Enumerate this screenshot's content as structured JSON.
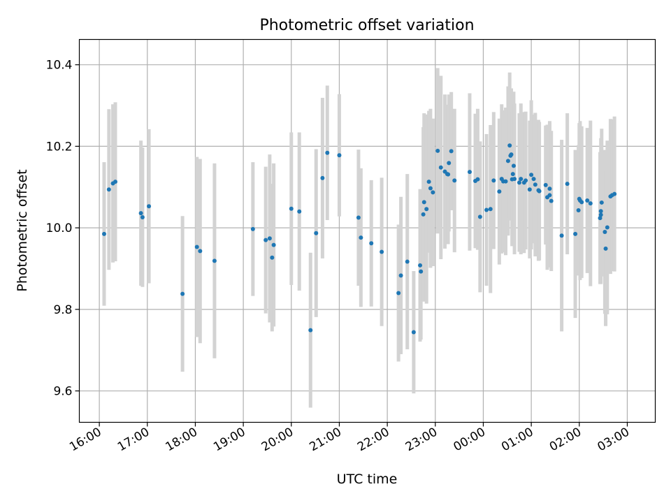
{
  "chart_data": {
    "type": "scatter",
    "title": "Photometric offset variation",
    "xlabel": "UTC time",
    "ylabel": "Photometric offset",
    "grid": true,
    "x_axis_kind": "time",
    "xlim": [
      "15:35",
      "03:35"
    ],
    "ylim": [
      9.523,
      10.462
    ],
    "x_tick_labels": [
      "16:00",
      "17:00",
      "18:00",
      "19:00",
      "20:00",
      "21:00",
      "22:00",
      "23:00",
      "00:00",
      "01:00",
      "02:00",
      "03:00"
    ],
    "y_ticks": [
      9.6,
      9.8,
      10.0,
      10.2,
      10.4
    ],
    "y_tick_labels": [
      "9.6",
      "9.8",
      "10.0",
      "10.2",
      "10.4"
    ],
    "colors": {
      "points": "#1f77b4",
      "error_bars": "#d3d3d3",
      "grid": "#b0b0b0"
    },
    "series": [
      {
        "x": [
          "16:06",
          "16:12",
          "16:17",
          "16:20",
          "16:52",
          "16:54",
          "17:02",
          "17:44",
          "18:02",
          "18:06",
          "18:24",
          "19:12",
          "19:28",
          "19:33",
          "19:36",
          "19:38",
          "20:00",
          "20:10",
          "20:24",
          "20:31",
          "20:39",
          "20:45",
          "21:00",
          "21:24",
          "21:27",
          "21:40",
          "21:53",
          "22:14",
          "22:17",
          "22:25",
          "22:33",
          "22:41",
          "22:42",
          "22:45",
          "22:46",
          "22:49",
          "22:52",
          "22:54",
          "22:57",
          "23:03",
          "23:07",
          "23:12",
          "23:15",
          "23:16",
          "23:17",
          "23:20",
          "23:24",
          "23:43",
          "23:50",
          "23:53",
          "23:56",
          "00:04",
          "00:09",
          "00:13",
          "00:20",
          "00:23",
          "00:25",
          "00:28",
          "00:31",
          "00:33",
          "00:34",
          "00:35",
          "00:36",
          "00:37",
          "00:38",
          "00:39",
          "00:45",
          "00:47",
          "00:51",
          "00:53",
          "00:58",
          "01:00",
          "01:03",
          "01:05",
          "01:09",
          "01:10",
          "01:18",
          "01:20",
          "01:23",
          "01:23",
          "01:25",
          "01:38",
          "01:45",
          "01:55",
          "01:59",
          "02:00",
          "02:01",
          "02:03",
          "02:10",
          "02:14",
          "02:26",
          "02:27",
          "02:27",
          "02:28",
          "02:32",
          "02:33",
          "02:35",
          "02:39",
          "02:41",
          "02:44"
        ],
        "y": [
          9.985,
          10.094,
          10.109,
          10.113,
          10.036,
          10.026,
          10.053,
          9.838,
          9.953,
          9.943,
          9.919,
          9.997,
          9.97,
          9.974,
          9.927,
          9.958,
          10.047,
          10.04,
          9.749,
          9.987,
          10.122,
          10.184,
          10.178,
          10.025,
          9.976,
          9.962,
          9.941,
          9.84,
          9.883,
          9.917,
          9.744,
          9.908,
          9.893,
          10.033,
          10.063,
          10.046,
          10.113,
          10.097,
          10.087,
          10.189,
          10.148,
          10.138,
          10.132,
          10.131,
          10.159,
          10.188,
          10.116,
          10.137,
          10.115,
          10.119,
          10.027,
          10.044,
          10.046,
          10.116,
          10.089,
          10.12,
          10.114,
          10.114,
          10.164,
          10.202,
          10.177,
          10.18,
          10.119,
          10.132,
          10.152,
          10.12,
          10.111,
          10.12,
          10.111,
          10.116,
          10.094,
          10.13,
          10.12,
          10.106,
          10.092,
          10.09,
          10.105,
          10.075,
          10.096,
          10.08,
          10.066,
          9.981,
          10.108,
          9.985,
          10.043,
          10.071,
          10.067,
          10.063,
          10.067,
          10.06,
          10.024,
          10.032,
          10.041,
          10.062,
          9.99,
          9.949,
          10.001,
          10.077,
          10.08,
          10.083
        ],
        "error": [
          0.176,
          0.197,
          0.194,
          0.195,
          0.178,
          0.171,
          0.189,
          0.191,
          0.221,
          0.226,
          0.239,
          0.164,
          0.18,
          0.206,
          0.181,
          0.2,
          0.187,
          0.194,
          0.19,
          0.206,
          0.197,
          0.165,
          0.15,
          0.167,
          0.17,
          0.155,
          0.182,
          0.168,
          0.193,
          0.215,
          0.15,
          0.187,
          0.167,
          0.214,
          0.218,
          0.232,
          0.174,
          0.195,
          0.181,
          0.203,
          0.225,
          0.189,
          0.164,
          0.171,
          0.168,
          0.145,
          0.176,
          0.193,
          0.165,
          0.173,
          0.185,
          0.186,
          0.206,
          0.168,
          0.179,
          0.183,
          0.174,
          0.181,
          0.183,
          0.179,
          0.152,
          0.162,
          0.164,
          0.166,
          0.182,
          0.185,
          0.17,
          0.185,
          0.173,
          0.169,
          0.169,
          0.183,
          0.158,
          0.176,
          0.173,
          0.17,
          0.146,
          0.178,
          0.166,
          0.177,
          0.172,
          0.235,
          0.173,
          0.206,
          0.16,
          0.186,
          0.195,
          0.186,
          0.178,
          0.203,
          0.162,
          0.152,
          0.179,
          0.181,
          0.201,
          0.19,
          0.213,
          0.19,
          0.186,
          0.19
        ]
      }
    ]
  }
}
